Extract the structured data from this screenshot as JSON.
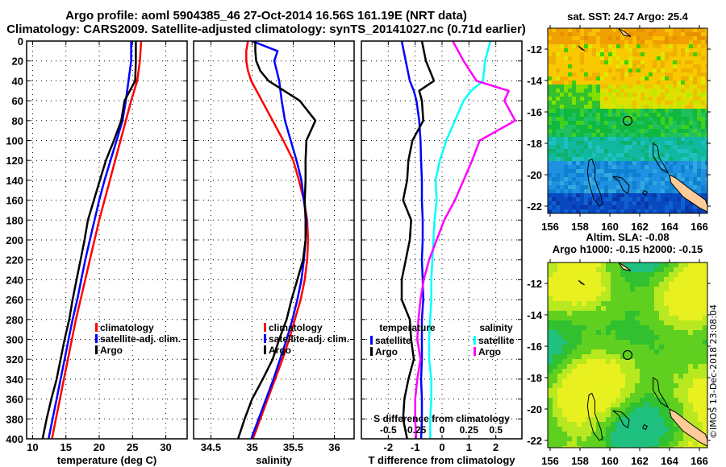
{
  "header": {
    "title_line1": "Argo profile: aoml 5904385_46 27-Oct-2014 16.56S 161.19E (NRT data)",
    "title_line2": "Climatology: CARS2009. Satellite-adjusted climatology: synTS_20141027.nc (0.71d earlier)"
  },
  "colors": {
    "climatology": "#ff0000",
    "satellite": "#0000ff",
    "argo": "#000000",
    "sal_satellite": "#00ffff",
    "sal_argo": "#ff00ff",
    "land": "#ffcc99"
  },
  "maps": {
    "sst_title": "sat. SST: 24.7 Argo: 25.4",
    "sla_title_line1": "Altim. SLA: -0.08",
    "sla_title_line2": "Argo h1000: -0.15 h2000: -0.15",
    "lon_ticks": [
      "156",
      "158",
      "160",
      "162",
      "164",
      "166"
    ],
    "lat_ticks": [
      "-12",
      "-14",
      "-16",
      "-18",
      "-20",
      "-22"
    ],
    "float_lon": 161.19,
    "float_lat": -16.56
  },
  "footer": {
    "stamp": "©IMOS 13-Dec-2018 23:08:04"
  },
  "chart_data": [
    {
      "type": "line",
      "title": "",
      "xlabel": "temperature (deg C)",
      "ylabel": "",
      "xlim": [
        9.1,
        33.2
      ],
      "ylim": [
        400,
        0
      ],
      "x_ticks": [
        10,
        15,
        20,
        25,
        30
      ],
      "y_ticks": [
        0,
        20,
        40,
        60,
        80,
        100,
        120,
        140,
        160,
        180,
        200,
        220,
        240,
        260,
        280,
        300,
        320,
        340,
        360,
        380,
        400
      ],
      "grid": true,
      "legend": {
        "position": "right-middle",
        "entries": [
          "climatology",
          "satellite-adj. clim.",
          "Argo"
        ]
      },
      "depth": [
        0,
        20,
        40,
        60,
        80,
        100,
        120,
        140,
        160,
        180,
        200,
        220,
        240,
        260,
        280,
        300,
        320,
        340,
        360,
        380,
        400
      ],
      "series": [
        {
          "name": "climatology",
          "color": "#ff0000",
          "values": [
            26.3,
            26.1,
            25.7,
            24.8,
            24.0,
            23.2,
            22.4,
            21.6,
            20.8,
            20.0,
            19.3,
            18.6,
            17.9,
            17.2,
            16.5,
            15.9,
            15.3,
            14.7,
            14.1,
            13.5,
            12.9
          ]
        },
        {
          "name": "satellite-adj. clim.",
          "color": "#0000ff",
          "values": [
            24.8,
            24.8,
            24.4,
            24.0,
            23.5,
            22.6,
            21.7,
            20.8,
            20.0,
            19.3,
            18.6,
            17.9,
            17.3,
            16.7,
            16.0,
            15.4,
            14.8,
            14.2,
            13.6,
            13.0,
            12.4
          ]
        },
        {
          "name": "Argo",
          "color": "#000000",
          "values": [
            25.5,
            25.5,
            25.4,
            23.8,
            23.3,
            22.2,
            21.0,
            20.1,
            19.2,
            18.3,
            17.8,
            17.2,
            16.6,
            16.0,
            15.5,
            14.8,
            14.2,
            13.6,
            12.8,
            12.1,
            11.5
          ]
        }
      ]
    },
    {
      "type": "line",
      "title": "",
      "xlabel": "salinity",
      "ylabel": "",
      "xlim": [
        34.29,
        36.24
      ],
      "ylim": [
        400,
        0
      ],
      "x_ticks": [
        34.5,
        35,
        35.5,
        36
      ],
      "grid": true,
      "legend": {
        "position": "right-middle",
        "entries": [
          "climatology",
          "satellite-adj. clim.",
          "Argo"
        ]
      },
      "depth": [
        0,
        10,
        20,
        30,
        40,
        60,
        80,
        100,
        120,
        140,
        160,
        180,
        200,
        220,
        240,
        260,
        280,
        300,
        320,
        340,
        360,
        380,
        400
      ],
      "series": [
        {
          "name": "climatology",
          "color": "#ff0000",
          "values": [
            34.95,
            34.93,
            34.93,
            34.95,
            34.99,
            35.12,
            35.25,
            35.38,
            35.5,
            35.57,
            35.63,
            35.67,
            35.68,
            35.67,
            35.64,
            35.59,
            35.52,
            35.45,
            35.37,
            35.28,
            35.19,
            35.1,
            35.01
          ]
        },
        {
          "name": "satellite-adj. clim.",
          "color": "#0000ff",
          "values": [
            35.0,
            35.31,
            35.27,
            35.3,
            35.33,
            35.36,
            35.4,
            35.47,
            35.54,
            35.6,
            35.63,
            35.66,
            35.65,
            35.63,
            35.6,
            35.55,
            35.49,
            35.42,
            35.34,
            35.26,
            35.17,
            35.08,
            34.99
          ]
        },
        {
          "name": "Argo",
          "color": "#000000",
          "values": [
            35.04,
            35.04,
            35.05,
            35.1,
            35.2,
            35.58,
            35.77,
            35.66,
            35.65,
            35.65,
            35.64,
            35.65,
            35.65,
            35.62,
            35.55,
            35.48,
            35.42,
            35.33,
            35.25,
            35.13,
            35.0,
            34.91,
            34.83
          ]
        }
      ]
    },
    {
      "type": "line",
      "title": "",
      "xlabel": "T difference from climatology",
      "x2label": "S difference from climatology",
      "ylabel": "",
      "xlim": [
        -3.0,
        2.97
      ],
      "x2lim": [
        -0.75,
        0.7425
      ],
      "ylim": [
        400,
        0
      ],
      "x_ticks": [
        -2,
        -1,
        0,
        1,
        2
      ],
      "x2_ticks": [
        "-0.5",
        "-0.25",
        "0",
        "0.25",
        "0.5"
      ],
      "grid": true,
      "legend": {
        "position": "bottom",
        "groups": [
          {
            "title": "temperature",
            "entries": [
              "satellite",
              "Argo"
            ]
          },
          {
            "title": "salinity",
            "entries": [
              "satellite",
              "Argo"
            ]
          }
        ]
      },
      "depth": [
        0,
        20,
        40,
        50,
        60,
        80,
        100,
        120,
        140,
        160,
        180,
        200,
        220,
        240,
        260,
        280,
        300,
        320,
        340,
        360,
        380,
        400
      ],
      "series": [
        {
          "name": "temperature satellite",
          "color": "#0000ff",
          "axis": "T",
          "values": [
            -1.5,
            -1.35,
            -1.2,
            -1.05,
            -0.95,
            -0.85,
            -0.8,
            -0.78,
            -0.75,
            -0.75,
            -0.72,
            -0.72,
            -0.75,
            -0.72,
            -0.7,
            -0.75,
            -0.75,
            -0.75,
            -0.78,
            -0.75,
            -0.75,
            -0.78
          ]
        },
        {
          "name": "temperature Argo",
          "color": "#000000",
          "axis": "T",
          "values": [
            -0.75,
            -0.6,
            -0.3,
            -0.85,
            -0.75,
            -0.7,
            -1.1,
            -1.25,
            -1.3,
            -1.45,
            -1.15,
            -1.2,
            -1.35,
            -1.5,
            -1.5,
            -1.2,
            -1.15,
            -1.05,
            -1.25,
            -1.4,
            -1.45,
            -1.3
          ]
        },
        {
          "name": "salinity satellite",
          "color": "#00ffff",
          "axis": "S",
          "values": [
            0.45,
            0.4,
            0.38,
            0.27,
            0.2,
            0.12,
            0.04,
            -0.02,
            -0.06,
            -0.05,
            -0.07,
            -0.08,
            -0.09,
            -0.1,
            -0.1,
            -0.11,
            -0.12,
            -0.12,
            -0.1,
            -0.1,
            -0.11,
            -0.11
          ]
        },
        {
          "name": "salinity Argo",
          "color": "#ff00ff",
          "axis": "S",
          "values": [
            0.1,
            0.2,
            0.32,
            0.62,
            0.58,
            0.68,
            0.35,
            0.28,
            0.2,
            0.12,
            0.02,
            -0.05,
            -0.12,
            -0.17,
            -0.2,
            -0.22,
            -0.23,
            -0.2,
            -0.23,
            -0.25,
            -0.25,
            -0.24
          ]
        }
      ]
    }
  ]
}
